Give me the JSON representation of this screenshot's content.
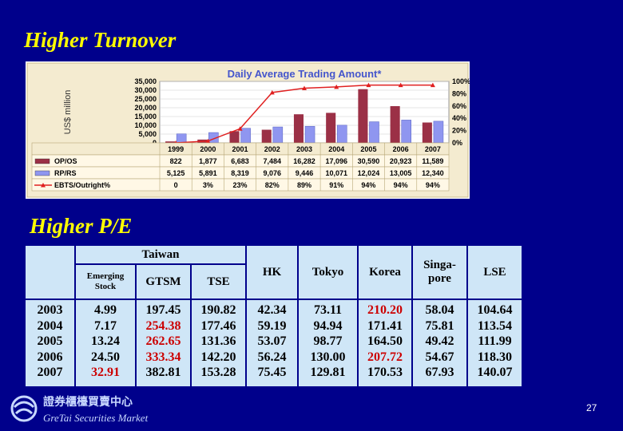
{
  "headings": {
    "turnover": "Higher Turnover",
    "pe": "Higher P/E"
  },
  "chart_data": {
    "type": "bar",
    "title": "Daily Average Trading Amount*",
    "ylabel": "US$ million",
    "ylim": [
      0,
      35000
    ],
    "y_ticks": [
      "35,000",
      "30,000",
      "25,000",
      "20,000",
      "15,000",
      "10,000",
      "5,000",
      "0"
    ],
    "y2lim": [
      0,
      100
    ],
    "y2_ticks": [
      "100%",
      "80%",
      "60%",
      "40%",
      "20%",
      "0%"
    ],
    "categories": [
      "1999",
      "2000",
      "2001",
      "2002",
      "2003",
      "2004",
      "2005",
      "2006",
      "2007"
    ],
    "series": [
      {
        "name": "OP/OS",
        "type": "bar",
        "color": "#9b3046",
        "values": [
          822,
          1877,
          6683,
          7484,
          16282,
          17096,
          30590,
          20923,
          11589
        ],
        "labels": [
          "822",
          "1,877",
          "6,683",
          "7,484",
          "16,282",
          "17,096",
          "30,590",
          "20,923",
          "11,589"
        ]
      },
      {
        "name": "RP/RS",
        "type": "bar",
        "color": "#8f96f0",
        "values": [
          5125,
          5891,
          8319,
          9076,
          9446,
          10071,
          12024,
          13005,
          12340
        ],
        "labels": [
          "5,125",
          "5,891",
          "8,319",
          "9,076",
          "9,446",
          "10,071",
          "12,024",
          "13,005",
          "12,340"
        ]
      },
      {
        "name": "EBTS/Outright%",
        "type": "line",
        "axis": "secondary",
        "color": "#e02020",
        "values": [
          0,
          3,
          23,
          82,
          89,
          91,
          94,
          94,
          94
        ],
        "labels": [
          "0",
          "3%",
          "23%",
          "82%",
          "89%",
          "91%",
          "94%",
          "94%",
          "94%"
        ]
      }
    ],
    "grid": true,
    "legend": "table-below"
  },
  "pe_table": {
    "group_header": "Taiwan",
    "columns": [
      "Emerging Stock",
      "GTSM",
      "TSE",
      "HK",
      "Tokyo",
      "Korea",
      "Singa-pore",
      "LSE"
    ],
    "years": [
      "2003",
      "2004",
      "2005",
      "2006",
      "2007"
    ],
    "rows": [
      [
        "4.99",
        "197.45",
        "190.82",
        "42.34",
        "73.11",
        "210.20",
        "58.04",
        "104.64"
      ],
      [
        "7.17",
        "254.38",
        "177.46",
        "59.19",
        "94.94",
        "171.41",
        "75.81",
        "113.54"
      ],
      [
        "13.24",
        "262.65",
        "131.36",
        "53.07",
        "98.77",
        "164.50",
        "49.42",
        "111.99"
      ],
      [
        "24.50",
        "333.34",
        "142.20",
        "56.24",
        "130.00",
        "207.72",
        "54.67",
        "118.30"
      ],
      [
        "32.91",
        "382.81",
        "153.28",
        "75.45",
        "129.81",
        "170.53",
        "67.93",
        "140.07"
      ]
    ],
    "highlight_color": "#cc0000",
    "highlighted": [
      [
        0,
        5
      ],
      [
        1,
        1
      ],
      [
        2,
        1
      ],
      [
        3,
        1
      ],
      [
        3,
        5
      ],
      [
        4,
        0
      ]
    ]
  },
  "footer": {
    "logo_chinese": "證券櫃檯買賣中心",
    "logo_english": "GreTai Securities Market",
    "page_number": "27"
  }
}
